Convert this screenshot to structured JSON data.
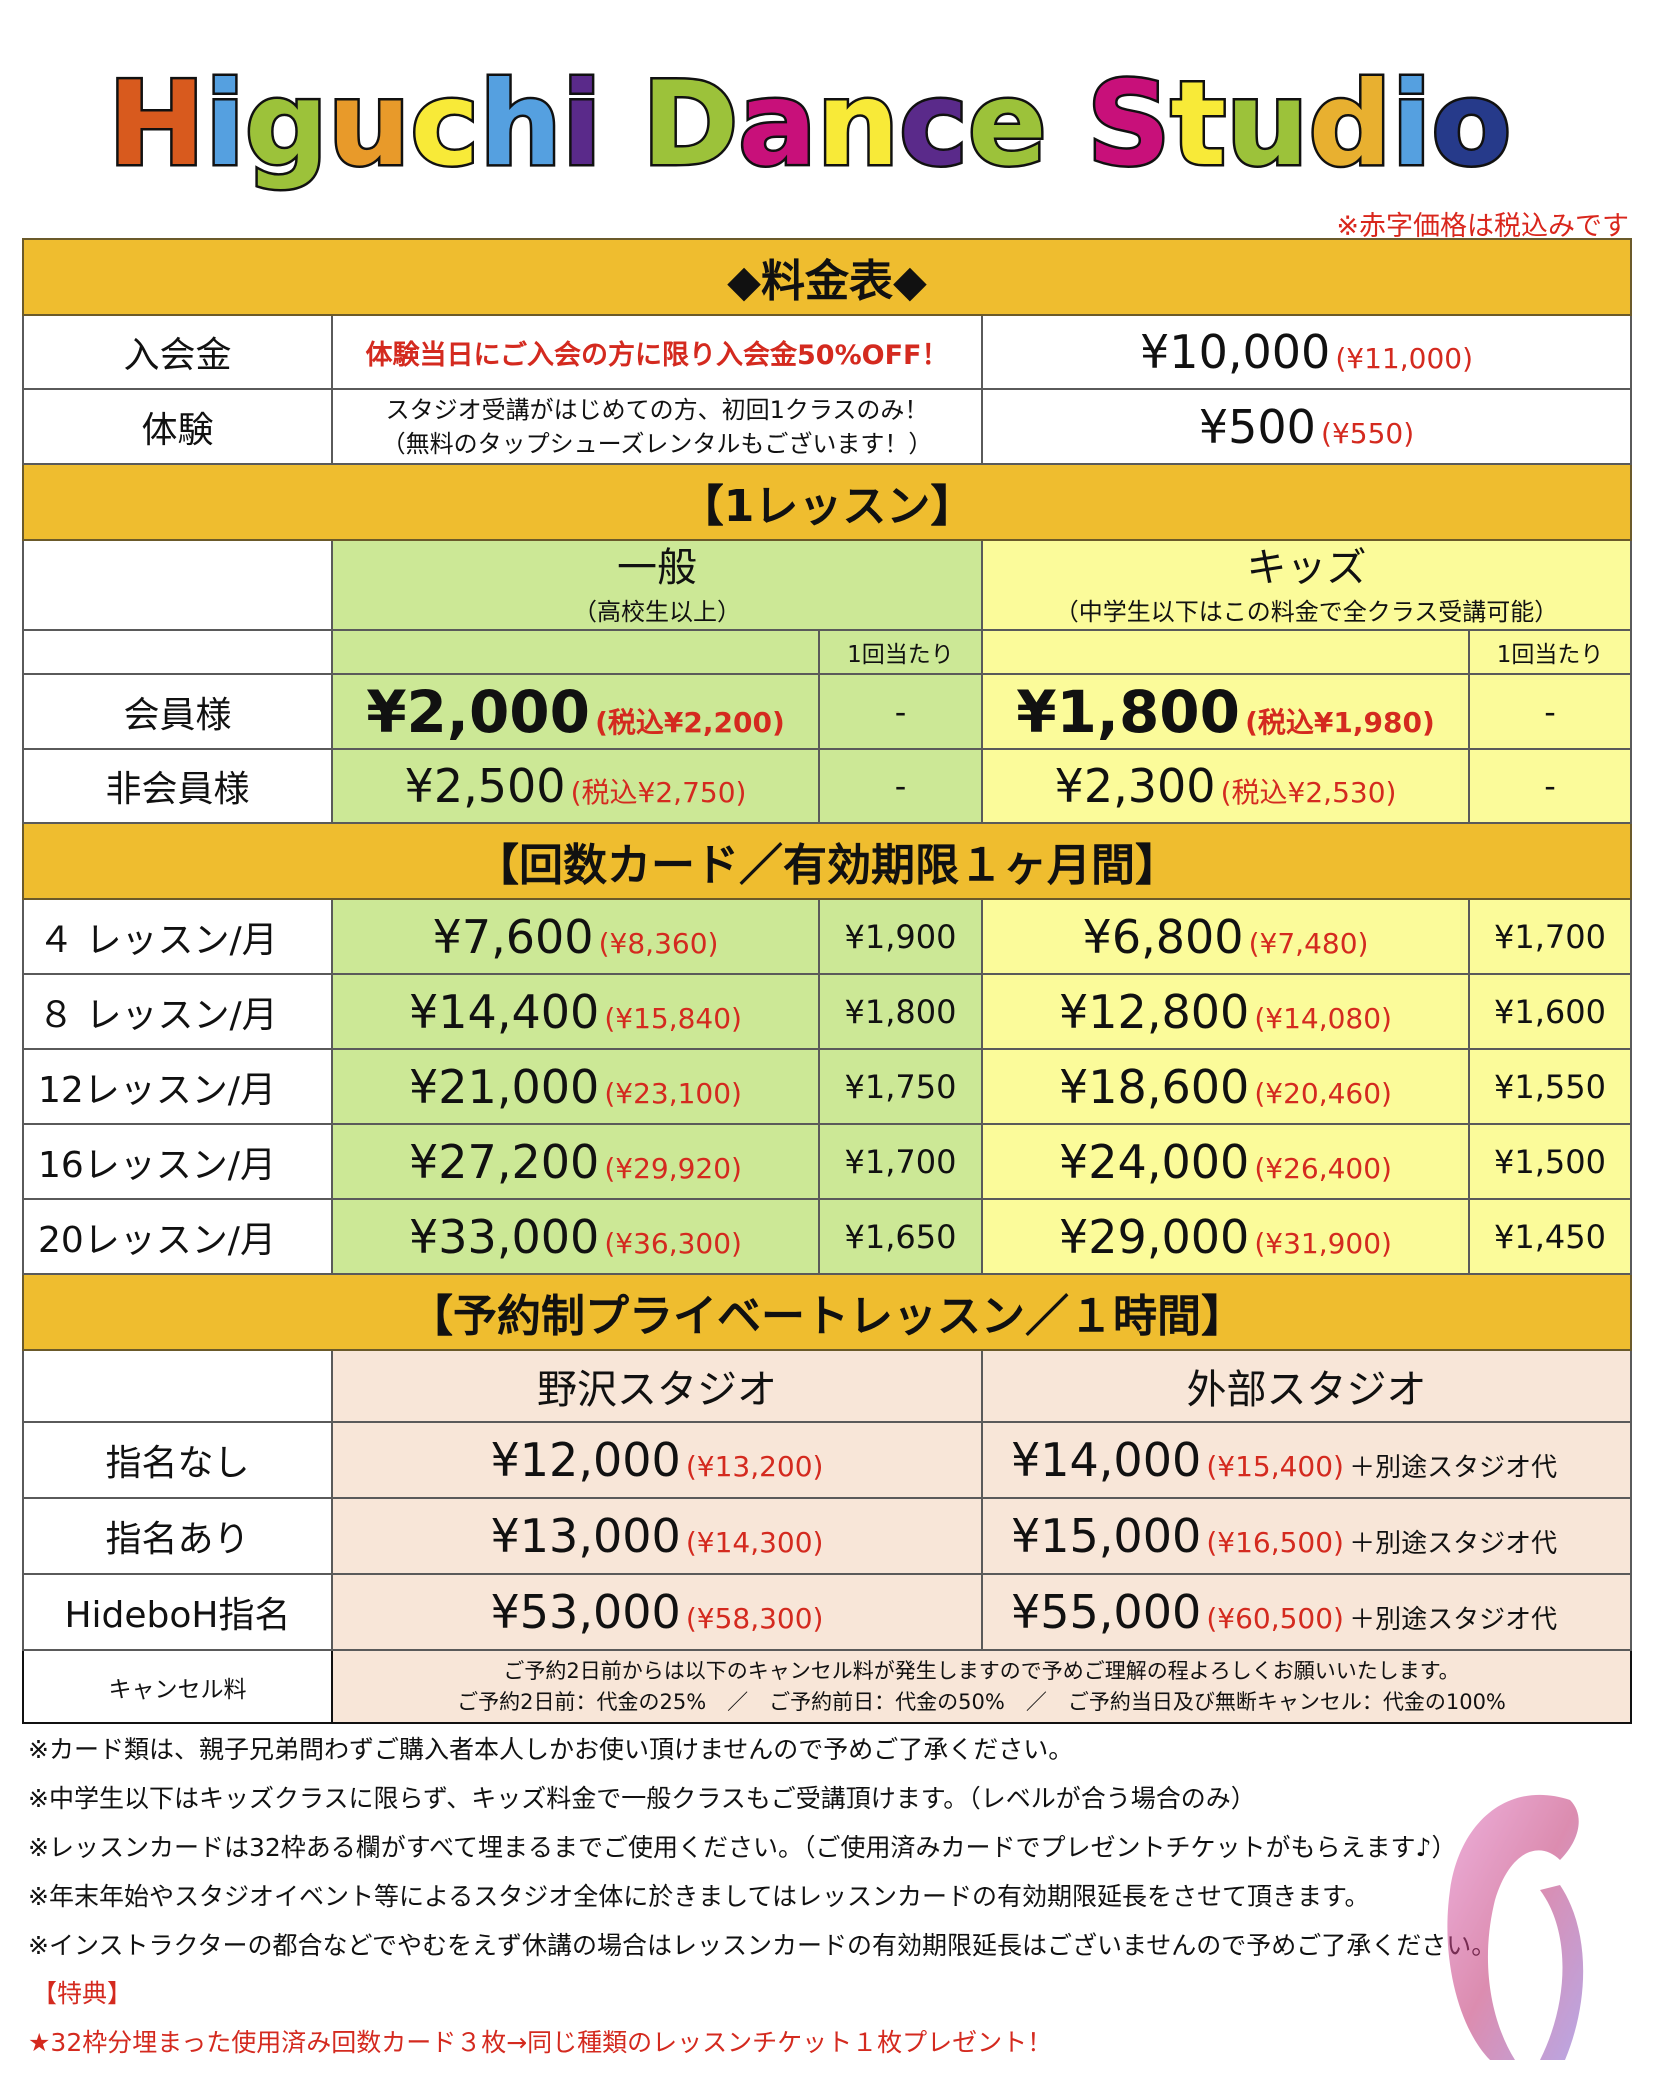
{
  "logo": {
    "text": "Higuchi Dance Studio",
    "letters": [
      {
        "c": "H",
        "color": "#D85A1E"
      },
      {
        "c": "i",
        "color": "#55A0E0"
      },
      {
        "c": "g",
        "color": "#9CC23A"
      },
      {
        "c": "u",
        "color": "#E89A2A"
      },
      {
        "c": "c",
        "color": "#F8EA38"
      },
      {
        "c": "h",
        "color": "#55A0E0"
      },
      {
        "c": "i",
        "color": "#5A2A8A"
      },
      {
        "c": " ",
        "color": "#fff"
      },
      {
        "c": "D",
        "color": "#9CC23A"
      },
      {
        "c": "a",
        "color": "#C8107A"
      },
      {
        "c": "n",
        "color": "#F8EA38"
      },
      {
        "c": "c",
        "color": "#5A2A8A"
      },
      {
        "c": "e",
        "color": "#9CC23A"
      },
      {
        "c": " ",
        "color": "#fff"
      },
      {
        "c": "S",
        "color": "#C8107A"
      },
      {
        "c": "t",
        "color": "#F8EA38"
      },
      {
        "c": "u",
        "color": "#9CC23A"
      },
      {
        "c": "d",
        "color": "#E8B030"
      },
      {
        "c": "i",
        "color": "#55A0E0"
      },
      {
        "c": "o",
        "color": "#263A8A"
      }
    ]
  },
  "tax_note": "※赤字価格は税込みです",
  "table": {
    "title": "◆料金表◆",
    "admission": {
      "label": "入会金",
      "promo": "体験当日にご入会の方に限り入会金50%OFF！",
      "price": "¥10,000",
      "tax": "(¥11,000)"
    },
    "trial": {
      "label": "体験",
      "desc1": "スタジオ受講がはじめての方、初回1クラスのみ！",
      "desc2": "（無料のタップシューズレンタルもございます！）",
      "price": "¥500",
      "tax": "(¥550)"
    },
    "single": {
      "title": "【1レッスン】",
      "general": "一般",
      "general_sub": "（高校生以上）",
      "kids": "キッズ",
      "kids_sub": "（中学生以下はこの料金で全クラス受講可能）",
      "per_label": "1回当たり",
      "rows": [
        {
          "label": "会員様",
          "g_price": "¥2,000",
          "g_tax": "(税込¥2,200)",
          "g_per": "-",
          "k_price": "¥1,800",
          "k_tax": "(税込¥1,980)",
          "k_per": "-"
        },
        {
          "label": "非会員様",
          "g_price": "¥2,500",
          "g_tax": "(税込¥2,750)",
          "g_per": "-",
          "k_price": "¥2,300",
          "k_tax": "(税込¥2,530)",
          "k_per": "-"
        }
      ]
    },
    "cards": {
      "title": "【回数カード／有効期限１ヶ月間】",
      "rows": [
        {
          "label": "４ レッスン/月",
          "g_price": "¥7,600",
          "g_tax": "(¥8,360)",
          "g_per": "¥1,900",
          "k_price": "¥6,800",
          "k_tax": "(¥7,480)",
          "k_per": "¥1,700"
        },
        {
          "label": "８ レッスン/月",
          "g_price": "¥14,400",
          "g_tax": "(¥15,840)",
          "g_per": "¥1,800",
          "k_price": "¥12,800",
          "k_tax": "(¥14,080)",
          "k_per": "¥1,600"
        },
        {
          "label": "12レッスン/月",
          "g_price": "¥21,000",
          "g_tax": "(¥23,100)",
          "g_per": "¥1,750",
          "k_price": "¥18,600",
          "k_tax": "(¥20,460)",
          "k_per": "¥1,550"
        },
        {
          "label": "16レッスン/月",
          "g_price": "¥27,200",
          "g_tax": "(¥29,920)",
          "g_per": "¥1,700",
          "k_price": "¥24,000",
          "k_tax": "(¥26,400)",
          "k_per": "¥1,500"
        },
        {
          "label": "20レッスン/月",
          "g_price": "¥33,000",
          "g_tax": "(¥36,300)",
          "g_per": "¥1,650",
          "k_price": "¥29,000",
          "k_tax": "(¥31,900)",
          "k_per": "¥1,450"
        }
      ]
    },
    "private": {
      "title": "【予約制プライベートレッスン／１時間】",
      "nozawa": "野沢スタジオ",
      "external": "外部スタジオ",
      "extra": "＋別途スタジオ代",
      "rows": [
        {
          "label": "指名なし",
          "n_price": "¥12,000",
          "n_tax": "(¥13,200)",
          "e_price": "¥14,000",
          "e_tax": "(¥15,400)"
        },
        {
          "label": "指名あり",
          "n_price": "¥13,000",
          "n_tax": "(¥14,300)",
          "e_price": "¥15,000",
          "e_tax": "(¥16,500)"
        },
        {
          "label": "HideboH指名",
          "n_price": "¥53,000",
          "n_tax": "(¥58,300)",
          "e_price": "¥55,000",
          "e_tax": "(¥60,500)"
        }
      ]
    },
    "cancel": {
      "label": "キャンセル料",
      "line1": "ご予約2日前からは以下のキャンセル料が発生しますので予めご理解の程よろしくお願いいたします。",
      "line2": "ご予約2日前：代金の25%　／　ご予約前日：代金の50%　／　ご予約当日及び無断キャンセル：代金の100%"
    }
  },
  "notes": [
    "※カード類は、親子兄弟問わずご購入者本人しかお使い頂けませんので予めご了承ください。",
    "※中学生以下はキッズクラスに限らず、キッズ料金で一般クラスもご受講頂けます。（レベルが合う場合のみ）",
    "※レッスンカードは32枠ある欄がすべて埋まるまでご使用ください。（ご使用済みカードでプレゼントチケットがもらえます♪）",
    "※年末年始やスタジオイベント等によるスタジオ全体に於きましてはレッスンカードの有効期限延長をさせて頂きます。",
    "※インストラクターの都合などでやむをえず休講の場合はレッスンカードの有効期限延長はございませんので予めご了承ください。"
  ],
  "perk": {
    "title": "【特典】",
    "text": "★32枠分埋まった使用済み回数カード３枚→同じ種類のレッスンチケット１枚プレゼント！"
  },
  "colors": {
    "header": "#efbd2f",
    "general": "#cce896",
    "kids": "#fbfb9a",
    "private": "#f8e6d8",
    "tax_red": "#d42a1f"
  }
}
